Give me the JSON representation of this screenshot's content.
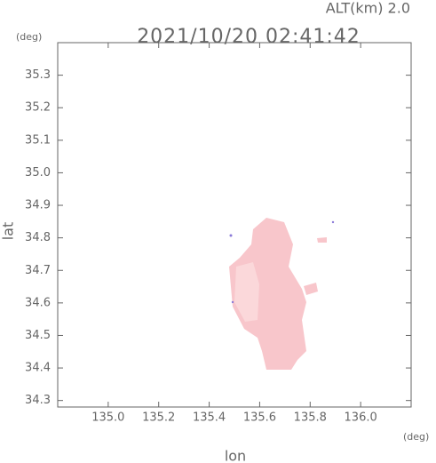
{
  "chart_data": {
    "type": "map",
    "title": "2021/10/20 02:41:42",
    "subtitle": "ALT(km) 2.0",
    "y_unit": "(deg)",
    "x_unit": "(deg)",
    "x_label": "lon",
    "y_label": "lat",
    "xlim": [
      134.8,
      136.2
    ],
    "xticks": [
      {
        "value": 135,
        "label": "135.0"
      },
      135.2,
      135.4,
      135.6,
      135.8,
      {
        "value": 136,
        "label": "136.0"
      }
    ],
    "ylim": [
      34.28,
      35.4
    ],
    "yticks": [
      35.3,
      35.2,
      35.1,
      {
        "value": 35,
        "label": "35.0"
      },
      34.9,
      34.8,
      34.7,
      34.6,
      34.5,
      34.4,
      34.3
    ]
  }
}
